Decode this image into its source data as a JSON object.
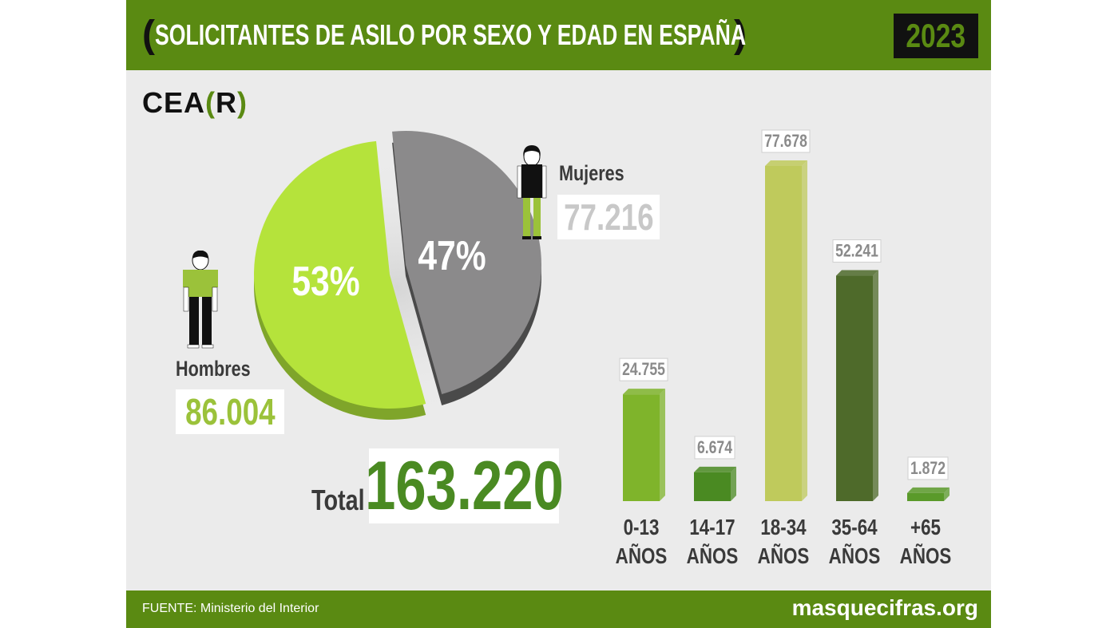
{
  "header": {
    "bracket_open": "(",
    "title": "SOLICITANTES DE ASILO POR SEXO Y EDAD EN ESPAÑA",
    "bracket_close": ")",
    "year": "2023"
  },
  "logo": {
    "prefix": "CEA",
    "open": "(",
    "letter": "R",
    "close": ")"
  },
  "gender": {
    "men_label": "Hombres",
    "men_value": "86.004",
    "men_pct": "53%",
    "women_label": "Mujeres",
    "women_value": "77.216",
    "women_pct": "47%"
  },
  "total": {
    "label": "Total",
    "value": "163.220"
  },
  "footer": {
    "source": "FUENTE: Ministerio del Interior",
    "site": "masquecifras.org"
  },
  "colors": {
    "header_green": "#5a8a12",
    "men": "#b5e33b",
    "women": "#8b8a8b",
    "bar_0_13": "#7fb42b",
    "bar_14_17": "#4a8a22",
    "bar_18_34": "#bfca5c",
    "bar_35_64": "#4e6a2a",
    "bar_65": "#5a9a2a"
  },
  "chart_data": [
    {
      "type": "pie",
      "categories": [
        "Hombres",
        "Mujeres"
      ],
      "values": [
        86004,
        77216
      ],
      "percent_labels": [
        "53%",
        "47%"
      ]
    },
    {
      "type": "bar",
      "categories": [
        [
          "0-13",
          "AÑOS"
        ],
        [
          "14-17",
          "AÑOS"
        ],
        [
          "18-34",
          "AÑOS"
        ],
        [
          "35-64",
          "AÑOS"
        ],
        [
          "+65",
          "AÑOS"
        ]
      ],
      "values": [
        24755,
        6674,
        77678,
        52241,
        1872
      ],
      "value_labels": [
        "24.755",
        "6.674",
        "77.678",
        "52.241",
        "1.872"
      ],
      "colors": [
        "#7fb42b",
        "#4a8a22",
        "#bfca5c",
        "#4e6a2a",
        "#5a9a2a"
      ],
      "ylim": [
        0,
        77678
      ],
      "grid": false
    }
  ]
}
